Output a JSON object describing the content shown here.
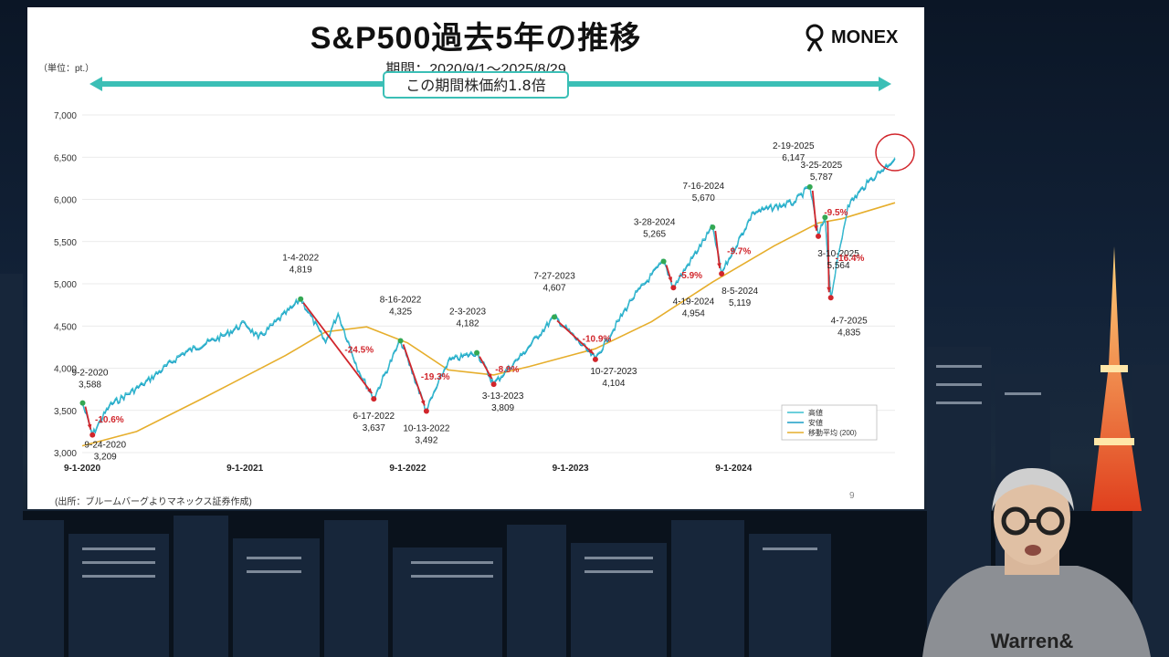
{
  "slide": {
    "title": "S&P500過去5年の推移",
    "period": "期間：2020/9/1～2025/8/29",
    "unit": "（単位：pt.）",
    "brand": "MONEX",
    "source": "(出所：ブルームバーグよりマネックス証券作成)",
    "page": "9"
  },
  "chart_data": {
    "type": "line",
    "banner": "この期間株価約1.8倍",
    "ylim": [
      3000,
      7000
    ],
    "yticks": [
      "3,000",
      "3,500",
      "4,000",
      "4,500",
      "5,000",
      "5,500",
      "6,000",
      "6,500",
      "7,000"
    ],
    "xlim": [
      "2020-09-01",
      "2025-08-29"
    ],
    "xticks": [
      "9-1-2020",
      "9-1-2021",
      "9-1-2022",
      "9-1-2023",
      "9-1-2024"
    ],
    "legend": {
      "position": "bottom-right",
      "entries": [
        "高値",
        "安値",
        "移動平均 (200)"
      ]
    },
    "colors": {
      "high": "#3bbfd0",
      "low": "#1a9ec6",
      "ma": "#e6ae2c",
      "arrow": "#d1262c",
      "peak": "#34a853",
      "trough": "#d1262c"
    },
    "series": [
      {
        "name": "高値",
        "x": [
          "2020-09-01",
          "2020-09-24",
          "2020-11-01",
          "2021-01-15",
          "2021-04-15",
          "2021-07-15",
          "2021-09-01",
          "2021-10-01",
          "2021-12-15",
          "2022-01-04",
          "2022-03-01",
          "2022-03-29",
          "2022-05-15",
          "2022-06-17",
          "2022-08-16",
          "2022-10-13",
          "2022-12-01",
          "2023-02-03",
          "2023-03-13",
          "2023-05-15",
          "2023-07-27",
          "2023-10-27",
          "2024-01-15",
          "2024-03-28",
          "2024-04-19",
          "2024-07-16",
          "2024-08-05",
          "2024-10-15",
          "2025-01-15",
          "2025-02-19",
          "2025-03-10",
          "2025-03-25",
          "2025-04-07",
          "2025-05-15",
          "2025-06-30",
          "2025-08-29"
        ],
        "values": [
          3588,
          3209,
          3550,
          3800,
          4170,
          4380,
          4530,
          4350,
          4710,
          4819,
          4300,
          4640,
          3950,
          3637,
          4325,
          3492,
          4080,
          4182,
          3809,
          4150,
          4607,
          4104,
          4800,
          5265,
          4954,
          5670,
          5119,
          5840,
          5960,
          6147,
          5564,
          5787,
          4835,
          5920,
          6200,
          6480
        ]
      },
      {
        "name": "安値",
        "x": [],
        "values": []
      },
      {
        "name": "移動平均 (200)",
        "x": [
          "2020-09-01",
          "2021-01-01",
          "2021-06-01",
          "2021-12-01",
          "2022-03-01",
          "2022-06-01",
          "2022-09-01",
          "2022-12-01",
          "2023-03-13",
          "2023-06-01",
          "2023-10-27",
          "2024-03-01",
          "2024-07-16",
          "2024-12-01",
          "2025-03-10",
          "2025-05-01",
          "2025-08-29"
        ],
        "values": [
          3080,
          3250,
          3650,
          4150,
          4430,
          4490,
          4300,
          3980,
          3920,
          4020,
          4230,
          4550,
          5020,
          5450,
          5720,
          5770,
          5960
        ]
      }
    ],
    "annotations": [
      {
        "date": "2020-09-02",
        "value": 3588,
        "kind": "peak",
        "date_label": "9-2-2020",
        "value_label": "3,588"
      },
      {
        "date": "2020-09-24",
        "value": 3209,
        "kind": "trough",
        "date_label": "9-24-2020",
        "value_label": "3,209",
        "drop": "-10.6%"
      },
      {
        "date": "2022-01-04",
        "value": 4819,
        "kind": "peak",
        "date_label": "1-4-2022",
        "value_label": "4,819"
      },
      {
        "date": "2022-06-17",
        "value": 3637,
        "kind": "trough",
        "date_label": "6-17-2022",
        "value_label": "3,637",
        "drop": "-24.5%"
      },
      {
        "date": "2022-08-16",
        "value": 4325,
        "kind": "peak",
        "date_label": "8-16-2022",
        "value_label": "4,325"
      },
      {
        "date": "2022-10-13",
        "value": 3492,
        "kind": "trough",
        "date_label": "10-13-2022",
        "value_label": "3,492",
        "drop": "-19.3%"
      },
      {
        "date": "2023-02-03",
        "value": 4182,
        "kind": "peak",
        "date_label": "2-3-2023",
        "value_label": "4,182"
      },
      {
        "date": "2023-03-13",
        "value": 3809,
        "kind": "trough",
        "date_label": "3-13-2023",
        "value_label": "3,809",
        "drop": "-8.9%"
      },
      {
        "date": "2023-07-27",
        "value": 4607,
        "kind": "peak",
        "date_label": "7-27-2023",
        "value_label": "4,607"
      },
      {
        "date": "2023-10-27",
        "value": 4104,
        "kind": "trough",
        "date_label": "10-27-2023",
        "value_label": "4,104",
        "drop": "-10.9%"
      },
      {
        "date": "2024-03-28",
        "value": 5265,
        "kind": "peak",
        "date_label": "3-28-2024",
        "value_label": "5,265"
      },
      {
        "date": "2024-04-19",
        "value": 4954,
        "kind": "trough",
        "date_label": "4-19-2024",
        "value_label": "4,954",
        "drop": "-5.9%"
      },
      {
        "date": "2024-07-16",
        "value": 5670,
        "kind": "peak",
        "date_label": "7-16-2024",
        "value_label": "5,670"
      },
      {
        "date": "2024-08-05",
        "value": 5119,
        "kind": "trough",
        "date_label": "8-5-2024",
        "value_label": "5,119",
        "drop": "-9.7%"
      },
      {
        "date": "2025-02-19",
        "value": 6147,
        "kind": "peak",
        "date_label": "2-19-2025",
        "value_label": "6,147"
      },
      {
        "date": "2025-03-10",
        "value": 5564,
        "kind": "trough",
        "date_label": "3-10-2025",
        "value_label": "5,564",
        "drop": "-9.5%"
      },
      {
        "date": "2025-03-25",
        "value": 5787,
        "kind": "peak",
        "date_label": "3-25-2025",
        "value_label": "5,787"
      },
      {
        "date": "2025-04-07",
        "value": 4835,
        "kind": "trough",
        "date_label": "4-7-2025",
        "value_label": "4,835",
        "drop": "-16.4%"
      }
    ]
  },
  "presenter": {
    "shirt_text": "Warren&"
  }
}
